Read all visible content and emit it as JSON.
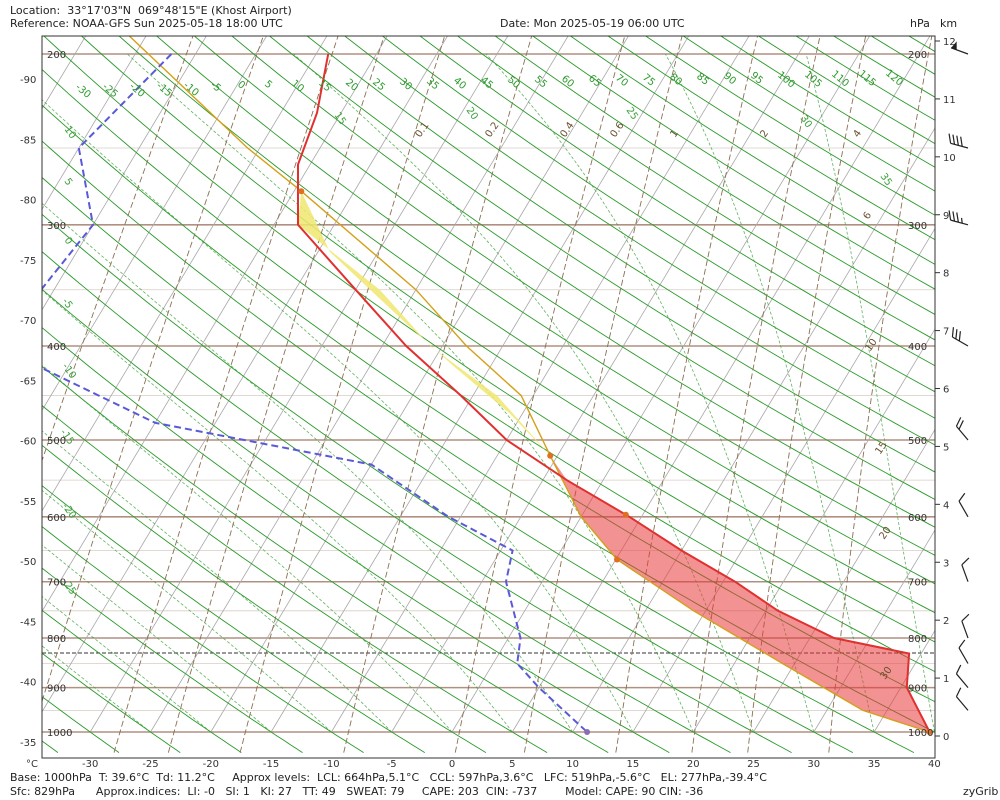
{
  "header": {
    "location": "Location:  33°17'03\"N  069°48'15\"E (Khost Airport)",
    "reference": "Reference: NOAA-GFS Sun 2025-05-18 18:00 UTC",
    "date": "Date: Mon 2025-05-19 06:00 UTC",
    "hpa_label": "hPa",
    "km_label": "km"
  },
  "footer": {
    "line1": "Base: 1000hPa  T: 39.6°C  Td: 11.2°C     Approx levels:  LCL: 664hPa,5.1°C   CCL: 597hPa,3.6°C   LFC: 519hPa,-5.6°C   EL: 277hPa,-39.4°C",
    "line2": "Sfc: 829hPa      Approx.indices:  LI: -0   SI: 1   KI: 27   TT: 49   SWEAT: 79     CAPE: 203  CIN: -737        Model: CAPE: 90 CIN: -36",
    "brand": "zyGrib"
  },
  "colors": {
    "temperature": "#e03030",
    "dewpoint": "#5a5ad8",
    "parcel": "#d4a017",
    "cape_fill": "#f0e870",
    "cin_fill": "#e83838",
    "isotherm": "#a8a8a8",
    "dry_adiabat": "#2a9a2a",
    "moist_adiabat": "#3aa03a",
    "mixing_ratio": "#8a7050",
    "isobar": "#b09080"
  },
  "chart_data": {
    "type": "skew-t",
    "x_axis_unit": "°C",
    "x_ticks": [
      -30,
      -25,
      -20,
      -15,
      -10,
      -5,
      0,
      5,
      10,
      15,
      20,
      25,
      30,
      35,
      40
    ],
    "xlim": [
      -35,
      40
    ],
    "left_axis_ticks": [
      "-90",
      "-85",
      "-80",
      "-75",
      "-70",
      "-65",
      "-60",
      "-55",
      "-50",
      "-45",
      "-40",
      "-35"
    ],
    "pressure_levels": [
      {
        "p": 200,
        "left": "200",
        "right": "200"
      },
      {
        "p": 300,
        "left": "300",
        "right": "300"
      },
      {
        "p": 400,
        "left": "400",
        "right": "400"
      },
      {
        "p": 500,
        "left": "500",
        "right": "500"
      },
      {
        "p": 600,
        "left": "600",
        "right": "600"
      },
      {
        "p": 700,
        "left": "700",
        "right": "700"
      },
      {
        "p": 800,
        "left": "800",
        "right": "800"
      },
      {
        "p": 900,
        "left": "900",
        "right": "900"
      },
      {
        "p": 1000,
        "left": "1000",
        "right": "1000"
      }
    ],
    "km_ticks": [
      "12",
      "11",
      "10",
      "9",
      "8",
      "7",
      "6",
      "5",
      "4",
      "3",
      "2",
      "1",
      "0"
    ],
    "surface_pressure_hpa": 829,
    "temperature_profile": [
      {
        "p": 200,
        "t": -44
      },
      {
        "p": 230,
        "t": -42
      },
      {
        "p": 260,
        "t": -41
      },
      {
        "p": 300,
        "t": -38
      },
      {
        "p": 350,
        "t": -30
      },
      {
        "p": 400,
        "t": -23
      },
      {
        "p": 450,
        "t": -16
      },
      {
        "p": 500,
        "t": -10
      },
      {
        "p": 550,
        "t": -3
      },
      {
        "p": 600,
        "t": 4
      },
      {
        "p": 650,
        "t": 10
      },
      {
        "p": 700,
        "t": 16
      },
      {
        "p": 750,
        "t": 21
      },
      {
        "p": 800,
        "t": 27
      },
      {
        "p": 830,
        "t": 34
      },
      {
        "p": 900,
        "t": 35.5
      },
      {
        "p": 1000,
        "t": 39.6
      }
    ],
    "dewpoint_profile": [
      {
        "p": 200,
        "t": -57
      },
      {
        "p": 250,
        "t": -60
      },
      {
        "p": 300,
        "t": -55
      },
      {
        "p": 400,
        "t": -57
      },
      {
        "p": 480,
        "t": -40
      },
      {
        "p": 530,
        "t": -20
      },
      {
        "p": 600,
        "t": -11
      },
      {
        "p": 650,
        "t": -4
      },
      {
        "p": 700,
        "t": -3
      },
      {
        "p": 800,
        "t": 1
      },
      {
        "p": 850,
        "t": 2
      },
      {
        "p": 900,
        "t": 5
      },
      {
        "p": 1000,
        "t": 11.2
      }
    ],
    "parcel_profile": [
      {
        "p": 180,
        "t": -65
      },
      {
        "p": 250,
        "t": -46
      },
      {
        "p": 277,
        "t": -39.4
      },
      {
        "p": 350,
        "t": -25
      },
      {
        "p": 400,
        "t": -18
      },
      {
        "p": 450,
        "t": -11
      },
      {
        "p": 519,
        "t": -5.6
      },
      {
        "p": 600,
        "t": 0
      },
      {
        "p": 664,
        "t": 5.1
      },
      {
        "p": 750,
        "t": 14
      },
      {
        "p": 850,
        "t": 24
      },
      {
        "p": 950,
        "t": 33
      },
      {
        "p": 1000,
        "t": 39.6
      }
    ],
    "parcel_markers": [
      {
        "p": 277,
        "t": -39.4,
        "name": "el-marker"
      },
      {
        "p": 519,
        "t": -5.6,
        "name": "lfc-marker"
      },
      {
        "p": 597,
        "t": 3.6,
        "name": "ccl-marker"
      },
      {
        "p": 664,
        "t": 5.1,
        "name": "lcl-marker"
      },
      {
        "p": 1000,
        "t": 39.6,
        "name": "surface-t-marker"
      },
      {
        "p": 1000,
        "t": 11.2,
        "name": "surface-td-marker"
      }
    ],
    "dry_adiabat_labels": [
      "-30",
      "-25",
      "-20",
      "-15",
      "-10",
      "-5",
      "0",
      "5",
      "10",
      "15",
      "20",
      "25",
      "30",
      "35",
      "40",
      "45",
      "50",
      "55",
      "60",
      "65",
      "70",
      "75",
      "80",
      "85",
      "90",
      "95",
      "100",
      "105",
      "110",
      "115",
      "120"
    ],
    "moist_adiabat_labels": [
      "-25",
      "-20",
      "-15",
      "-10",
      "-5",
      "0",
      "5",
      "10",
      "15",
      "20",
      "25",
      "30",
      "35"
    ],
    "mixing_ratio_labels": [
      "0.1",
      "0.2",
      "0.4",
      "0.6",
      "1",
      "2",
      "4",
      "6",
      "10",
      "15",
      "20",
      "30"
    ],
    "wind_barbs": [
      {
        "p": 200,
        "speed_kt": 50,
        "dir_deg": 290
      },
      {
        "p": 250,
        "speed_kt": 40,
        "dir_deg": 285
      },
      {
        "p": 300,
        "speed_kt": 35,
        "dir_deg": 285
      },
      {
        "p": 400,
        "speed_kt": 30,
        "dir_deg": 300
      },
      {
        "p": 500,
        "speed_kt": 20,
        "dir_deg": 320
      },
      {
        "p": 600,
        "speed_kt": 10,
        "dir_deg": 330
      },
      {
        "p": 700,
        "speed_kt": 10,
        "dir_deg": 340
      },
      {
        "p": 800,
        "speed_kt": 10,
        "dir_deg": 340
      },
      {
        "p": 850,
        "speed_kt": 10,
        "dir_deg": 330
      },
      {
        "p": 900,
        "speed_kt": 10,
        "dir_deg": 320
      },
      {
        "p": 950,
        "speed_kt": 10,
        "dir_deg": 320
      }
    ]
  }
}
